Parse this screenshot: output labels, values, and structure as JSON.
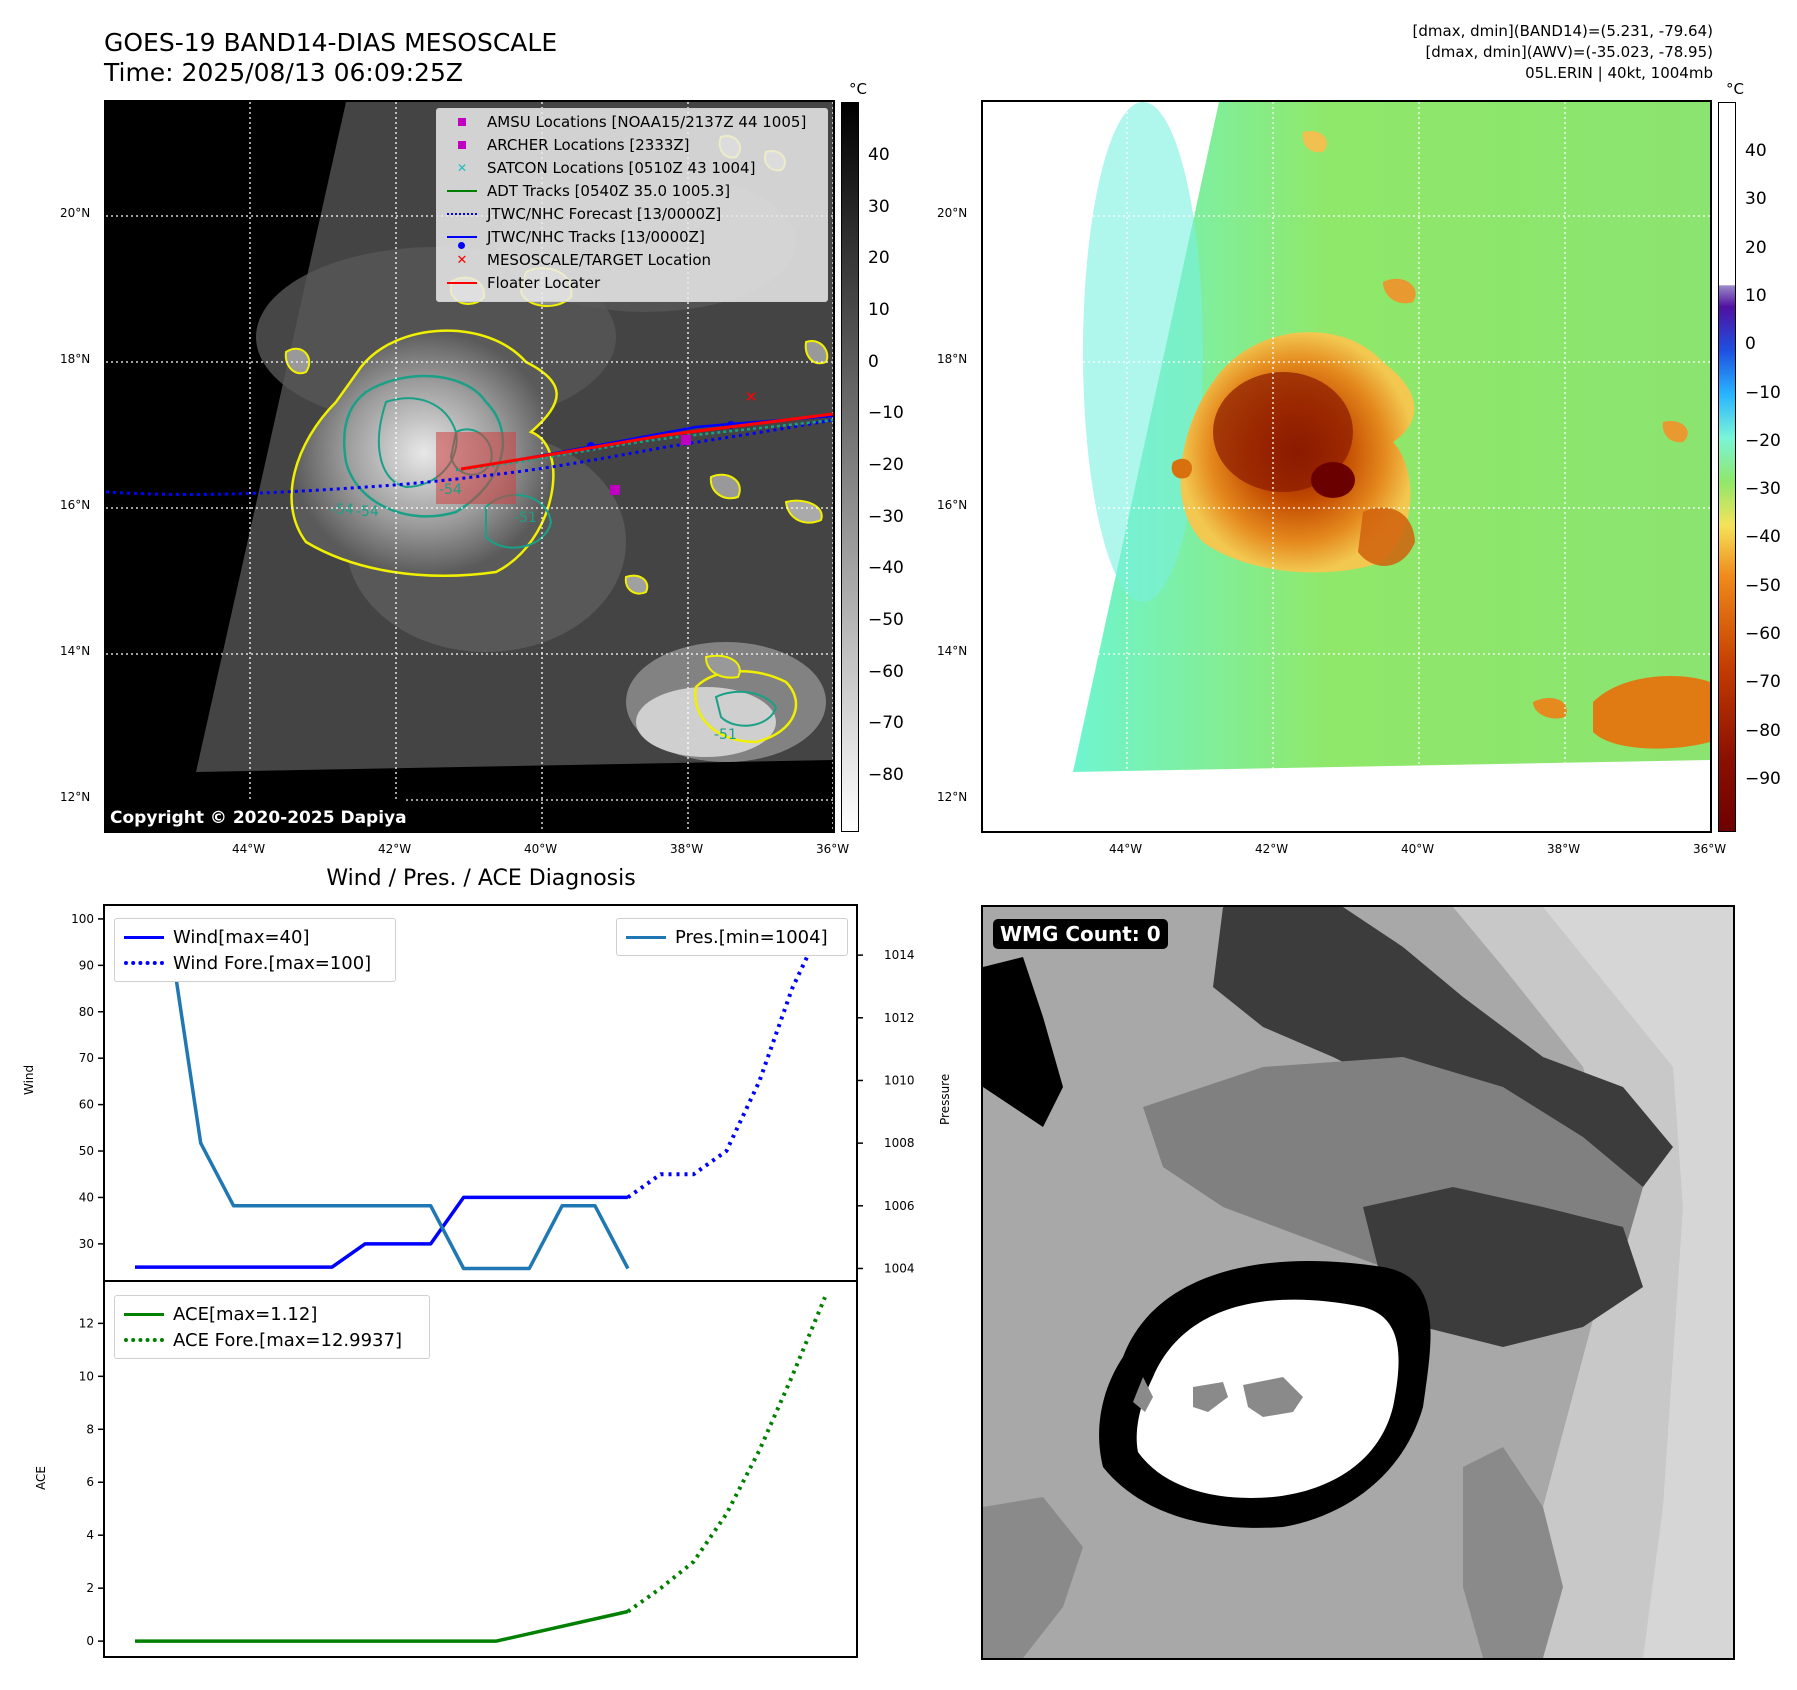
{
  "header": {
    "title_line1": "GOES-19 BAND14-DIAS MESOSCALE",
    "title_line2": "Time: 2025/08/13 06:09:25Z",
    "info_line1": "[dmax, dmin](BAND14)=(5.231, -79.64)",
    "info_line2": "[dmax, dmin](AWV)=(-35.023, -78.95)",
    "info_line3": "05L.ERIN | 40kt, 1004mb"
  },
  "map_axes": {
    "lat_labels": [
      "20°N",
      "18°N",
      "16°N",
      "14°N",
      "12°N"
    ],
    "lon_labels": [
      "44°W",
      "42°W",
      "40°W",
      "38°W",
      "36°W"
    ]
  },
  "ir_map": {
    "legend": [
      {
        "label": "AMSU Locations [NOAA15/2137Z 44 1005]",
        "symbol": "square",
        "color": "#c000c0"
      },
      {
        "label": "ARCHER Locations [2333Z]",
        "symbol": "square",
        "color": "#c000c0"
      },
      {
        "label": "SATCON Locations [0510Z 43 1004]",
        "symbol": "x",
        "color": "#17bfbf"
      },
      {
        "label": "ADT Tracks [0540Z 35.0 1005.3]",
        "symbol": "line",
        "color": "#008000"
      },
      {
        "label": "JTWC/NHC Forecast [13/0000Z]",
        "symbol": "dotted",
        "color": "#0000ff"
      },
      {
        "label": "JTWC/NHC Tracks [13/0000Z]",
        "symbol": "line-dot",
        "color": "#0000ff"
      },
      {
        "label": "MESOSCALE/TARGET Location",
        "symbol": "x",
        "color": "#ff0000"
      },
      {
        "label": "Floater Locater",
        "symbol": "line",
        "color": "#ff0000"
      }
    ],
    "contour_labels": [
      "-54",
      "-54",
      "-54",
      "-51",
      "-51"
    ],
    "colorbar_unit": "°C",
    "colorbar_ticks": [
      "40",
      "30",
      "20",
      "10",
      "0",
      "−10",
      "−20",
      "−30",
      "−40",
      "−50",
      "−60",
      "−70",
      "−80"
    ],
    "copyright": "Copyright © 2020-2025 Dapiya"
  },
  "awv_map": {
    "colorbar_unit": "°C",
    "colorbar_ticks": [
      "40",
      "30",
      "20",
      "10",
      "0",
      "−10",
      "−20",
      "−30",
      "−40",
      "−50",
      "−60",
      "−70",
      "−80",
      "−90"
    ]
  },
  "wmg": {
    "label": "WMG Count: 0"
  },
  "diag": {
    "title": "Wind / Pres. / ACE Diagnosis",
    "wind_ylabel": "Wind",
    "pres_ylabel": "Pressure",
    "ace_ylabel": "ACE",
    "wind_legend": [
      "Wind[max=40]",
      "Wind Fore.[max=100]"
    ],
    "pres_legend": [
      "Pres.[min=1004]"
    ],
    "ace_legend": [
      "ACE[max=1.12]",
      "ACE Fore.[max=12.9937]"
    ]
  },
  "chart_data": [
    {
      "type": "line",
      "title": "Wind / Pres. / ACE Diagnosis",
      "ylabel": "Wind",
      "ylim": [
        22,
        103
      ],
      "yticks": [
        30,
        40,
        50,
        60,
        70,
        80,
        90,
        100
      ],
      "xlim": [
        0,
        21
      ],
      "series": [
        {
          "name": "Wind[max=40]",
          "color": "#0000ff",
          "style": "solid",
          "x": [
            0,
            1,
            2,
            3,
            4,
            5,
            6,
            7,
            8,
            9,
            10,
            11,
            12,
            13,
            14,
            15
          ],
          "y": [
            25,
            25,
            25,
            25,
            25,
            25,
            25,
            30,
            30,
            30,
            40,
            40,
            40,
            40,
            40,
            40
          ]
        },
        {
          "name": "Wind Fore.[max=100]",
          "color": "#0000ff",
          "style": "dotted",
          "x": [
            15,
            16,
            17,
            18,
            19,
            20,
            21
          ],
          "y": [
            40,
            45,
            45,
            50,
            65,
            85,
            100
          ]
        }
      ]
    },
    {
      "type": "line",
      "ylabel": "Pressure",
      "ylim": [
        1003.6,
        1015.6
      ],
      "yticks": [
        1004,
        1006,
        1008,
        1010,
        1012,
        1014
      ],
      "xlim": [
        0,
        21
      ],
      "series": [
        {
          "name": "Pres.[min=1004]",
          "color": "#1f77b4",
          "style": "solid",
          "x": [
            0,
            0.5,
            1,
            2,
            3,
            4,
            5,
            6,
            7,
            8,
            9,
            10,
            11,
            12,
            13,
            14,
            15
          ],
          "y": [
            1015,
            1015,
            1015,
            1008,
            1006,
            1006,
            1006,
            1006,
            1006,
            1006,
            1006,
            1004,
            1004,
            1004,
            1006,
            1006,
            1004
          ]
        }
      ]
    },
    {
      "type": "line",
      "ylabel": "ACE",
      "ylim": [
        -0.6,
        13.6
      ],
      "yticks": [
        0,
        2,
        4,
        6,
        8,
        10,
        12
      ],
      "xlim": [
        0,
        21
      ],
      "series": [
        {
          "name": "ACE[max=1.12]",
          "color": "#008000",
          "style": "solid",
          "x": [
            0,
            5,
            11,
            15
          ],
          "y": [
            0,
            0,
            0,
            1.12
          ]
        },
        {
          "name": "ACE Fore.[max=12.9937]",
          "color": "#008000",
          "style": "dotted",
          "x": [
            15,
            16,
            17,
            18,
            19,
            20,
            21
          ],
          "y": [
            1.12,
            2.0,
            3.0,
            4.8,
            7.2,
            10.0,
            12.99
          ]
        }
      ]
    }
  ]
}
